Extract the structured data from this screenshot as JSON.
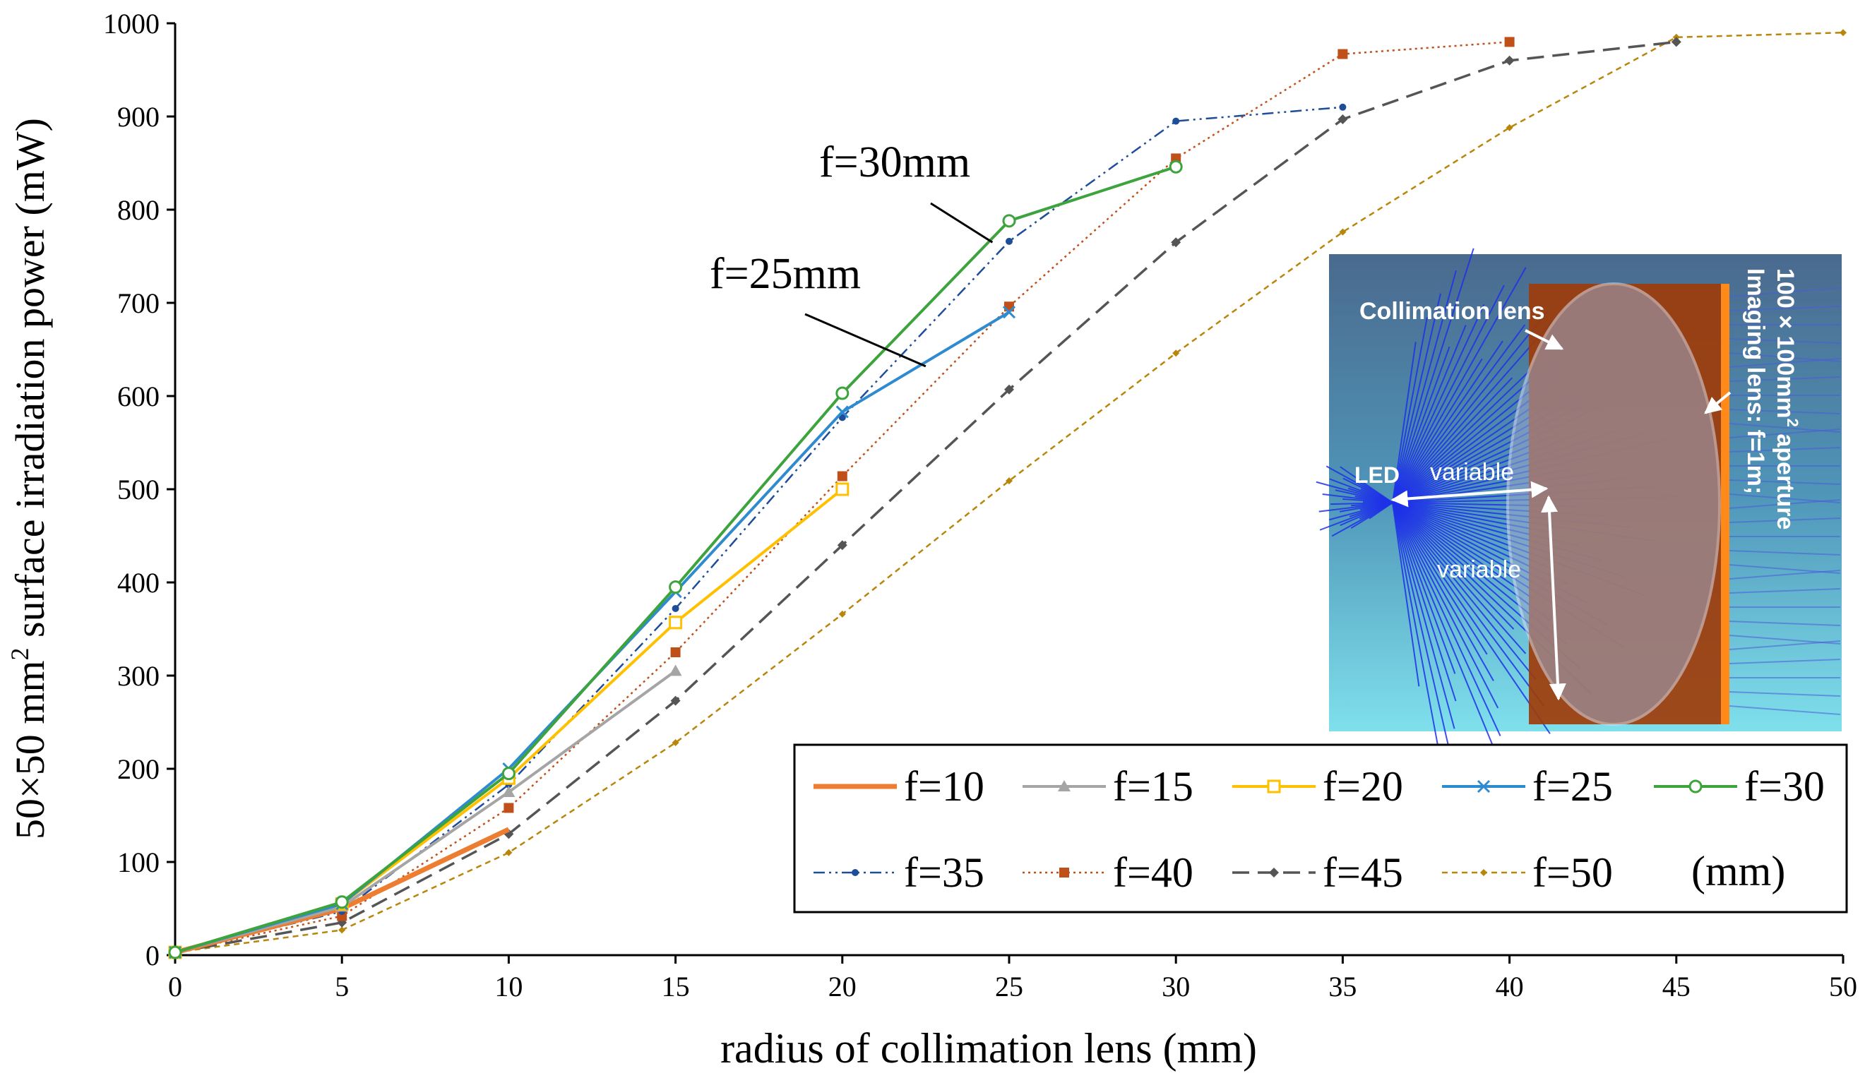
{
  "chart_data": {
    "type": "line",
    "title": "",
    "xlabel": "radius of collimation lens (mm)",
    "ylabel_main": "50×50 mm",
    "ylabel_sup": "2",
    "ylabel_rest": " surface irradiation power (mW)",
    "xlim": [
      0,
      50
    ],
    "ylim": [
      0,
      1000
    ],
    "xticks": [
      "0",
      "5",
      "10",
      "15",
      "20",
      "25",
      "30",
      "35",
      "40",
      "45",
      "50"
    ],
    "yticks": [
      "0",
      "100",
      "200",
      "300",
      "400",
      "500",
      "600",
      "700",
      "800",
      "900",
      "1000"
    ],
    "legend_unit": "(mm)",
    "colors": {
      "f10": "#ED7D31",
      "f15": "#A5A5A5",
      "f20": "#FFC000",
      "f25": "#2E8BD0",
      "f30": "#3DA33D",
      "f35": "#1F4E99",
      "f40": "#C0501A",
      "f45": "#555555",
      "f50": "#B8860B"
    },
    "series": [
      {
        "key": "f10",
        "name": "f=10",
        "x": [
          0,
          5,
          10
        ],
        "y": [
          3,
          50,
          135
        ]
      },
      {
        "key": "f15",
        "name": "f=15",
        "x": [
          0,
          5,
          10,
          15
        ],
        "y": [
          3,
          52,
          175,
          305
        ]
      },
      {
        "key": "f20",
        "name": "f=20",
        "x": [
          0,
          5,
          10,
          15,
          20
        ],
        "y": [
          3,
          55,
          190,
          357,
          500
        ]
      },
      {
        "key": "f25",
        "name": "f=25",
        "x": [
          0,
          5,
          10,
          15,
          20,
          25
        ],
        "y": [
          3,
          55,
          200,
          390,
          583,
          690
        ]
      },
      {
        "key": "f30",
        "name": "f=30",
        "x": [
          0,
          5,
          10,
          15,
          20,
          25,
          30
        ],
        "y": [
          3,
          57,
          195,
          395,
          603,
          788,
          846
        ]
      },
      {
        "key": "f35",
        "name": "f=35",
        "x": [
          0,
          5,
          10,
          15,
          20,
          25,
          30,
          35
        ],
        "y": [
          3,
          47,
          183,
          372,
          577,
          766,
          895,
          910
        ]
      },
      {
        "key": "f40",
        "name": "f=40",
        "x": [
          0,
          5,
          10,
          15,
          20,
          25,
          30,
          35,
          40
        ],
        "y": [
          3,
          42,
          158,
          325,
          514,
          696,
          855,
          967,
          980
        ]
      },
      {
        "key": "f45",
        "name": "f=45",
        "x": [
          0,
          5,
          10,
          15,
          20,
          25,
          30,
          35,
          40,
          45
        ],
        "y": [
          3,
          35,
          130,
          273,
          440,
          607,
          765,
          897,
          960,
          980
        ]
      },
      {
        "key": "f50",
        "name": "f=50",
        "x": [
          0,
          5,
          10,
          15,
          20,
          25,
          30,
          35,
          40,
          45,
          50
        ],
        "y": [
          3,
          27,
          110,
          228,
          366,
          509,
          646,
          776,
          888,
          985,
          990
        ]
      }
    ],
    "annotations": [
      {
        "text": "f=30mm",
        "series": "f30",
        "at_x": 24.5
      },
      {
        "text": "f=25mm",
        "series": "f25",
        "at_x": 22.5
      }
    ],
    "inset": {
      "collimation_label": "Collimation lens",
      "led_label": "LED",
      "variable_h": "variable",
      "variable_v": "variable",
      "imaging_label_1": "Imaging  lens: f=1m;",
      "imaging_label_2a": "100 × 100mm",
      "imaging_label_2sup": "2",
      "imaging_label_2b": " aperture"
    }
  }
}
